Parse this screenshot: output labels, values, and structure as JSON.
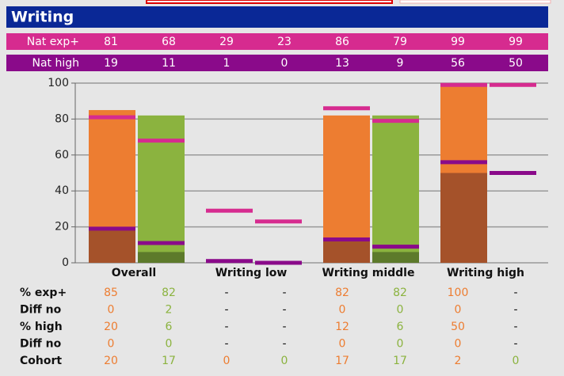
{
  "title": "Writing",
  "nat_rows": [
    {
      "label": "Nat exp+",
      "color": "#d62b8f",
      "values": [
        81,
        68,
        29,
        23,
        86,
        79,
        99,
        99
      ]
    },
    {
      "label": "Nat high",
      "color": "#8a0a8a",
      "values": [
        19,
        11,
        1,
        0,
        13,
        9,
        56,
        50
      ]
    }
  ],
  "chart_data": {
    "type": "bar",
    "categories": [
      "Overall",
      "Writing low",
      "Writing middle",
      "Writing high"
    ],
    "ylim": [
      0,
      100
    ],
    "yticks": [
      0,
      20,
      40,
      60,
      80,
      100
    ],
    "grid": true,
    "colors": [
      "#ed7d31",
      "#8bb33f"
    ],
    "dark_colors": [
      "#a5522a",
      "#5d7a2b"
    ]
  },
  "table": {
    "rows": [
      {
        "label": "% exp+",
        "values": [
          85,
          82,
          "-",
          "-",
          82,
          82,
          100,
          "-"
        ]
      },
      {
        "label": "Diff no",
        "values": [
          0,
          2,
          "-",
          "-",
          0,
          0,
          0,
          "-"
        ]
      },
      {
        "label": "% high",
        "values": [
          20,
          6,
          "-",
          "-",
          12,
          6,
          50,
          "-"
        ]
      },
      {
        "label": "Diff no",
        "values": [
          0,
          0,
          "-",
          "-",
          0,
          0,
          0,
          "-"
        ]
      },
      {
        "label": "Cohort",
        "values": [
          20,
          17,
          0,
          0,
          17,
          17,
          2,
          0
        ]
      }
    ]
  }
}
